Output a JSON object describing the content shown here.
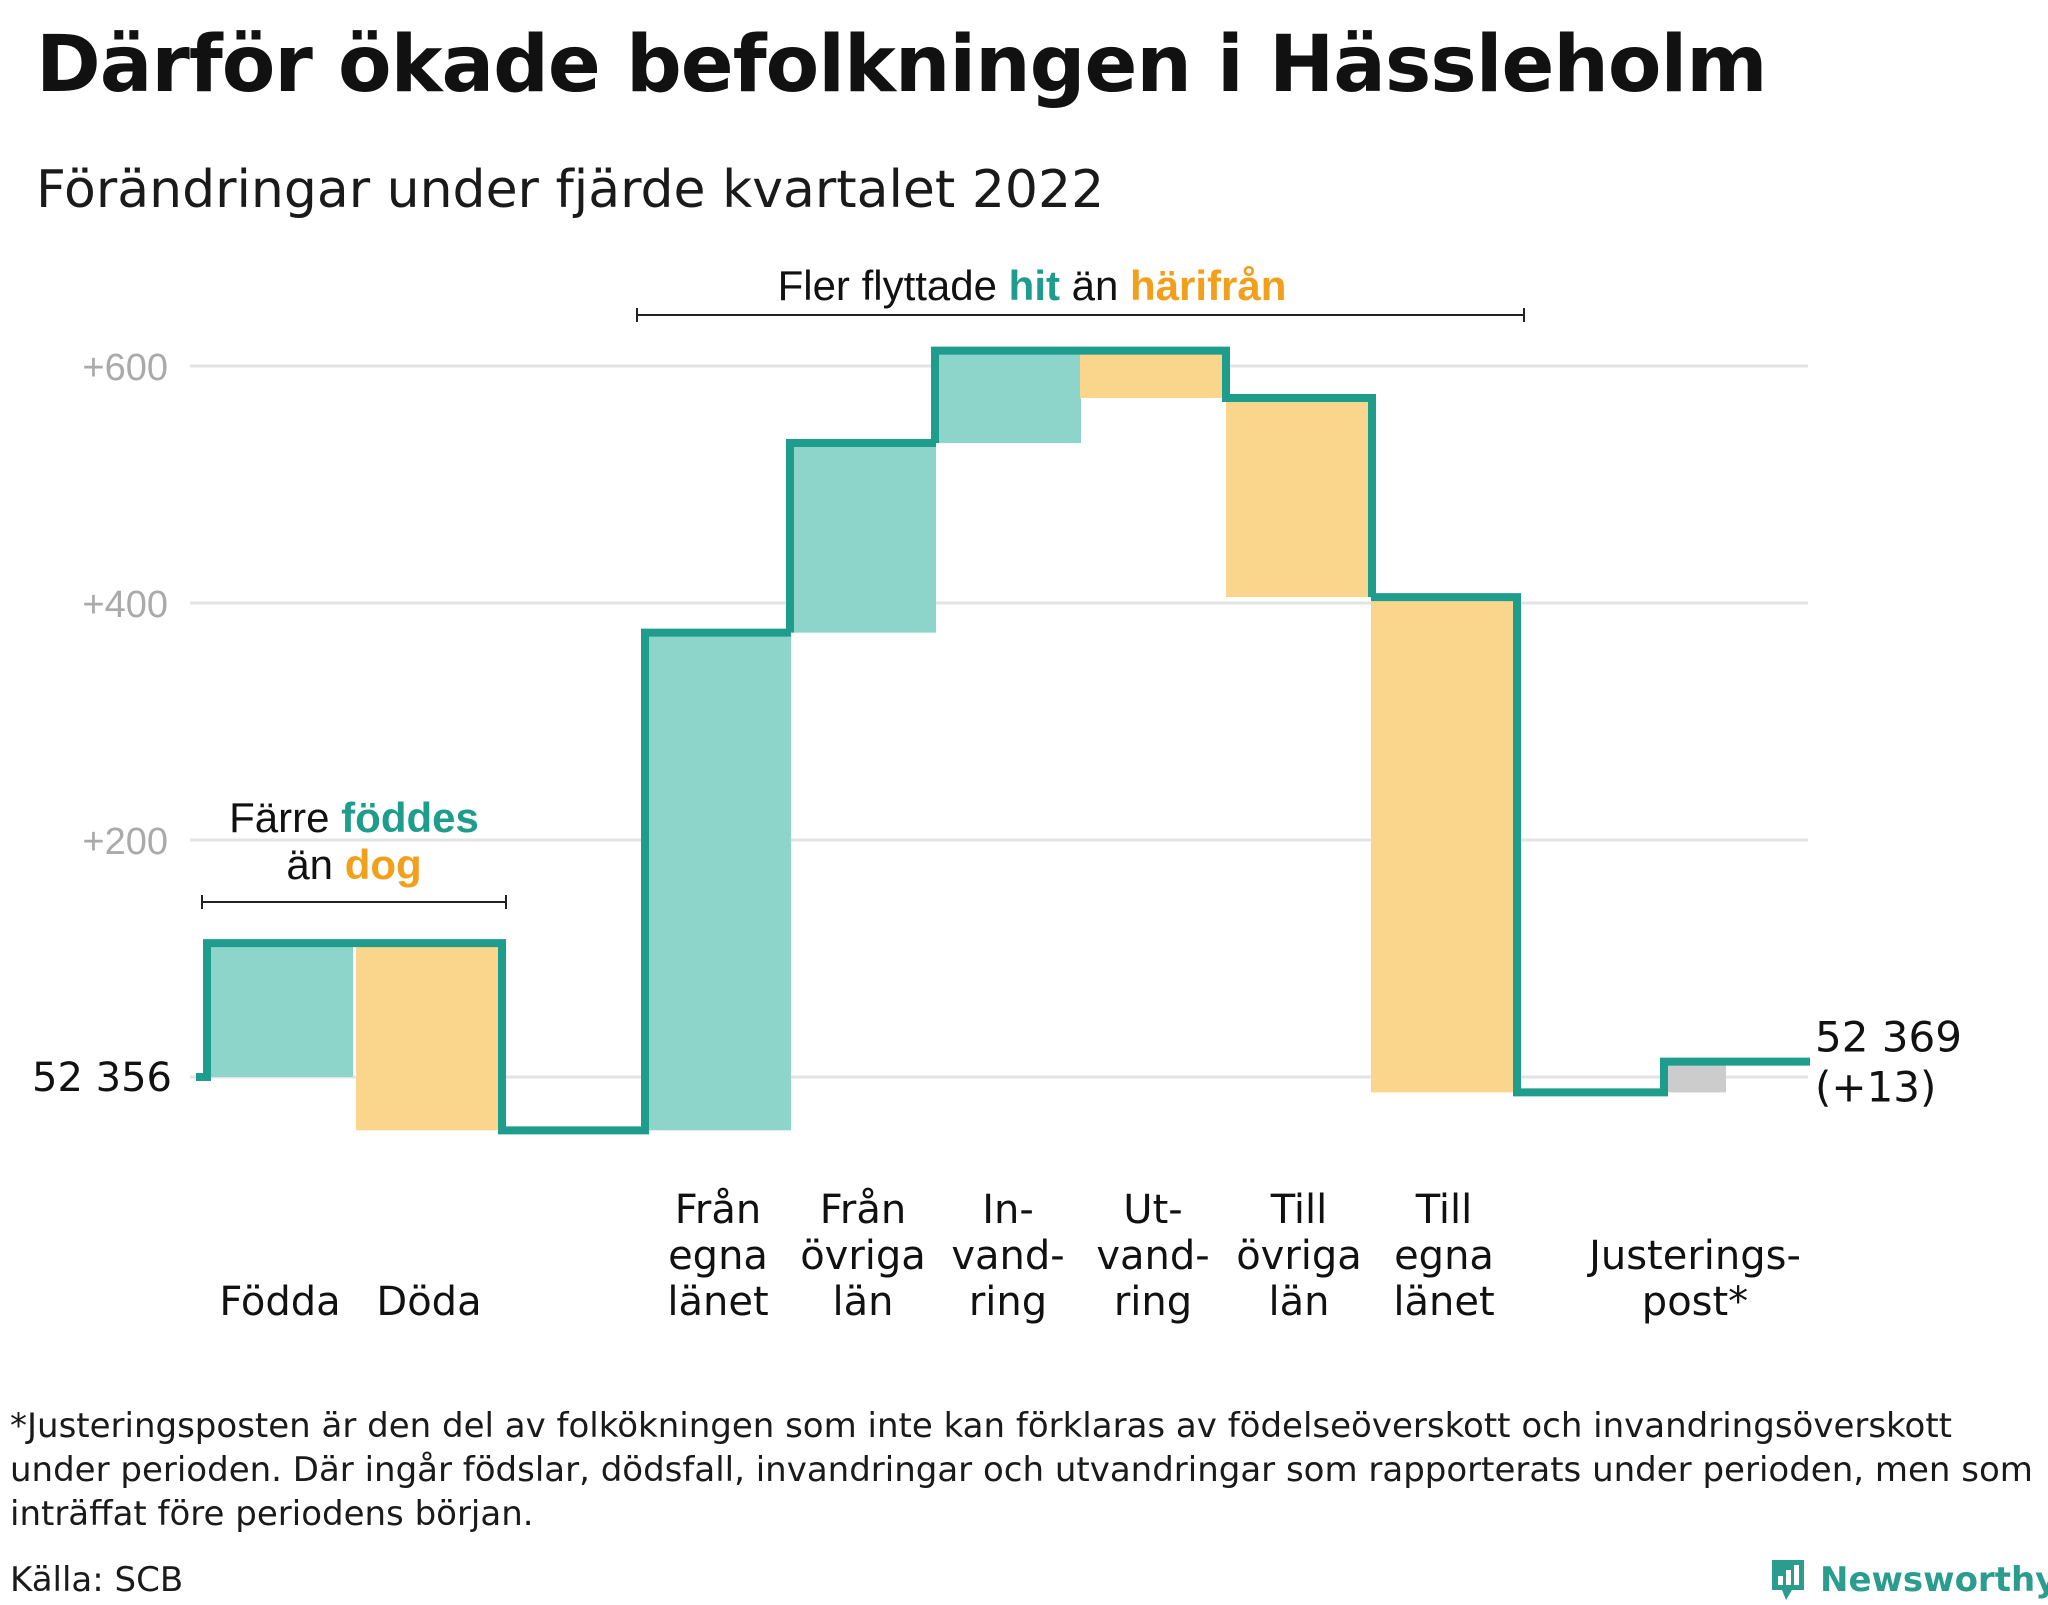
{
  "title": "Därför ökade befolkningen i Hässleholm",
  "subtitle": "Förändringar under fjärde kvartalet 2022",
  "colors": {
    "increase": "#8dd4cb",
    "decrease": "#fad58c",
    "adjustment": "#cccccc",
    "line": "#1e9c8c",
    "teal_text": "#1e9c8c",
    "orange_text": "#f29f1c",
    "grid": "#e3e3e3",
    "tick": "#aaaaaa"
  },
  "annotations": {
    "migration": {
      "before": "Fler flyttade ",
      "hit": "hit",
      "middle": " än ",
      "harifran": "härifrån"
    },
    "natural": {
      "before": "Färre ",
      "foddes": "föddes",
      "middle": "än ",
      "dog": "dog"
    }
  },
  "footnote": "*Justeringsposten är den del av folkökningen som inte kan förklaras av födelseöverskott och invandringsöverskott under perioden. Där ingår födslar, dödsfall, invandringar och utvandringar som rapporterats under perioden, men som inträffat före periodens början.",
  "source": "Källa: SCB",
  "brand": "Newsworthy",
  "chart_data": {
    "type": "bar",
    "subtype": "waterfall",
    "start_value": 52356,
    "start_label": "52 356",
    "end_value": 52369,
    "end_label": "52 369",
    "end_change_label": "(+13)",
    "ylim": [
      -60,
      600
    ],
    "yticks": [
      {
        "value": 200,
        "label": "+200"
      },
      {
        "value": 400,
        "label": "+400"
      },
      {
        "value": 600,
        "label": "+600"
      }
    ],
    "grid": true,
    "steps": [
      {
        "label": [
          "Födda"
        ],
        "change": 113,
        "kind": "increase"
      },
      {
        "label": [
          "Döda"
        ],
        "change": -158,
        "kind": "decrease"
      },
      {
        "label": [
          "Från",
          "egna",
          "länet"
        ],
        "change": 420,
        "kind": "increase"
      },
      {
        "label": [
          "Från",
          "övriga",
          "län"
        ],
        "change": 160,
        "kind": "increase"
      },
      {
        "label": [
          "In-",
          "vand-",
          "ring"
        ],
        "change": 78,
        "kind": "increase"
      },
      {
        "label": [
          "Ut-",
          "vand-",
          "ring"
        ],
        "change": -40,
        "kind": "decrease"
      },
      {
        "label": [
          "Till",
          "övriga",
          "län"
        ],
        "change": -168,
        "kind": "decrease"
      },
      {
        "label": [
          "Till",
          "egna",
          "länet"
        ],
        "change": -418,
        "kind": "decrease"
      },
      {
        "label": [
          "Justerings-",
          "post*"
        ],
        "change": 26,
        "kind": "adjustment"
      }
    ]
  }
}
